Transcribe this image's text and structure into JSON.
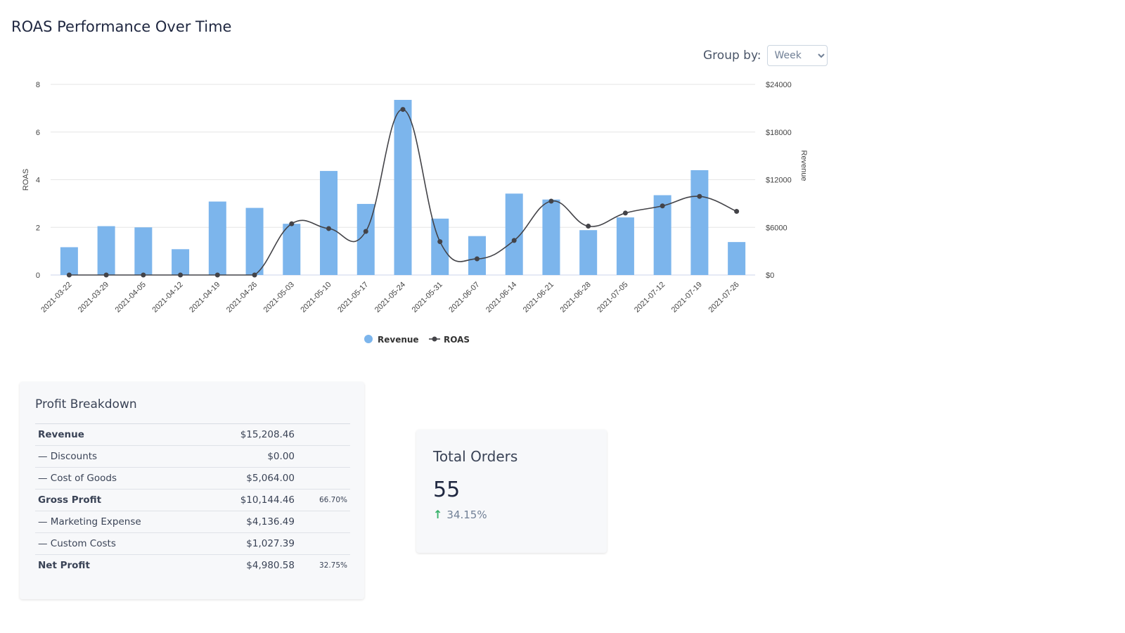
{
  "page": {
    "title": "ROAS Performance Over Time"
  },
  "group_by": {
    "label": "Group by:",
    "selected": "Week"
  },
  "chart_data": {
    "type": "bar",
    "categories": [
      "2021-03-22",
      "2021-03-29",
      "2021-04-05",
      "2021-04-12",
      "2021-04-19",
      "2021-04-26",
      "2021-05-03",
      "2021-05-10",
      "2021-05-17",
      "2021-05-24",
      "2021-05-31",
      "2021-06-07",
      "2021-06-14",
      "2021-06-21",
      "2021-06-28",
      "2021-07-05",
      "2021-07-12",
      "2021-07-19",
      "2021-07-26"
    ],
    "series": [
      {
        "name": "Revenue",
        "kind": "bar",
        "axis": "right",
        "color": "#7cb5ec",
        "values": [
          3500,
          6150,
          6000,
          3250,
          9250,
          8450,
          6450,
          13100,
          8950,
          22050,
          7100,
          4900,
          10250,
          9500,
          5650,
          7250,
          10050,
          13200,
          4150
        ]
      },
      {
        "name": "ROAS",
        "kind": "line",
        "axis": "left",
        "color": "#434348",
        "values": [
          0,
          0,
          0,
          0,
          0,
          0,
          2.15,
          1.95,
          1.83,
          6.95,
          1.4,
          0.68,
          1.45,
          3.1,
          2.05,
          2.6,
          2.9,
          3.3,
          2.67
        ]
      }
    ],
    "y_left": {
      "title": "ROAS",
      "ticks": [
        "0",
        "2",
        "4",
        "6",
        "8"
      ],
      "range": [
        0,
        8
      ]
    },
    "y_right": {
      "title": "Revenue",
      "ticks": [
        "$0",
        "$6000",
        "$12000",
        "$18000",
        "$24000"
      ],
      "range": [
        0,
        24000
      ]
    },
    "legend": {
      "placement": "bottom-center",
      "items": [
        "Revenue",
        "ROAS"
      ]
    },
    "grid": true
  },
  "profit": {
    "title": "Profit Breakdown",
    "rows": [
      {
        "label": "Revenue",
        "value": "$15,208.46",
        "pct": "",
        "bold": true
      },
      {
        "label": "— Discounts",
        "value": "$0.00",
        "pct": "",
        "bold": false
      },
      {
        "label": "— Cost of Goods",
        "value": "$5,064.00",
        "pct": "",
        "bold": false
      },
      {
        "label": "Gross Profit",
        "value": "$10,144.46",
        "pct": "66.70%",
        "bold": true
      },
      {
        "label": "— Marketing Expense",
        "value": "$4,136.49",
        "pct": "",
        "bold": false
      },
      {
        "label": "— Custom Costs",
        "value": "$1,027.39",
        "pct": "",
        "bold": false
      },
      {
        "label": "Net Profit",
        "value": "$4,980.58",
        "pct": "32.75%",
        "bold": true
      }
    ]
  },
  "orders": {
    "title": "Total Orders",
    "value": "55",
    "change": "34.15%",
    "change_icon": "arrow-up-icon",
    "change_color": "#38b26a"
  }
}
